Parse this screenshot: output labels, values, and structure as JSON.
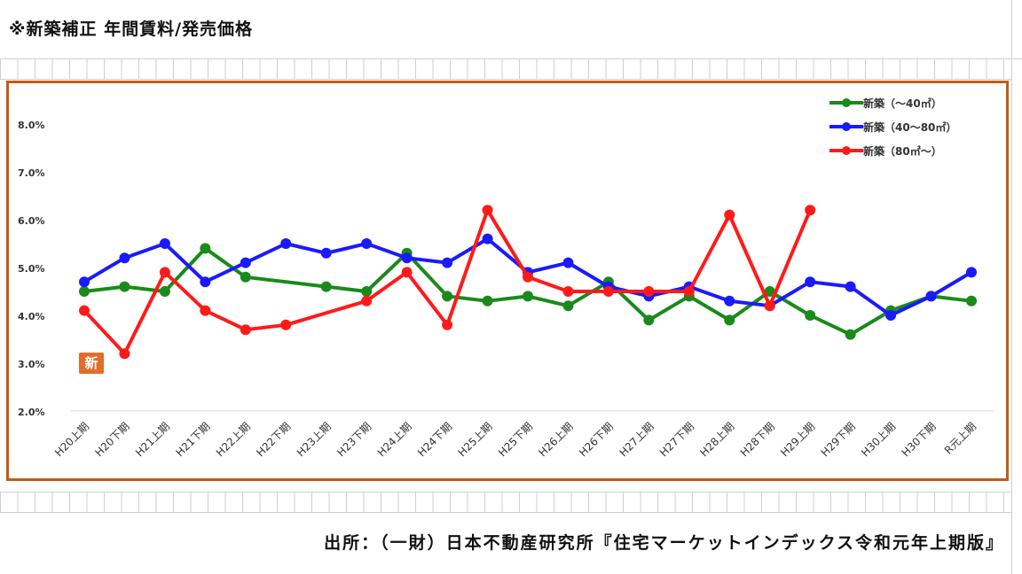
{
  "header": {
    "title": "※新築補正 年間賃料/発売価格"
  },
  "footer": {
    "source": "出所：（一財）日本不動産研究所『住宅マーケットインデックス令和元年上期版』"
  },
  "badge": {
    "label": "新"
  },
  "colors": {
    "frame": "#c55a11",
    "series_small": "#1a8a1a",
    "series_mid": "#1a1aff",
    "series_large": "#ff1a1a"
  },
  "chart_data": {
    "type": "line",
    "title": "",
    "xlabel": "",
    "ylabel": "",
    "ylim": [
      2.0,
      8.5
    ],
    "yticks": [
      "2.0%",
      "3.0%",
      "4.0%",
      "5.0%",
      "6.0%",
      "7.0%",
      "8.0%"
    ],
    "ytick_values": [
      2.0,
      3.0,
      4.0,
      5.0,
      6.0,
      7.0,
      8.0
    ],
    "grid": false,
    "legend": "top-right",
    "categories": [
      "H20上期",
      "H20下期",
      "H21上期",
      "H21下期",
      "H22上期",
      "H22下期",
      "H23上期",
      "H23下期",
      "H24上期",
      "H24下期",
      "H25上期",
      "H25下期",
      "H26上期",
      "H26下期",
      "H27上期",
      "H27下期",
      "H28上期",
      "H28下期",
      "H29上期",
      "H29下期",
      "H30上期",
      "H30下期",
      "R元上期"
    ],
    "series": [
      {
        "name": "新築（～40㎡）",
        "color": "#1a8a1a",
        "values": [
          4.5,
          4.6,
          4.5,
          5.4,
          4.8,
          null,
          4.6,
          4.5,
          5.3,
          4.4,
          4.3,
          4.4,
          4.2,
          4.7,
          3.9,
          4.4,
          3.9,
          4.5,
          4.0,
          3.6,
          4.1,
          4.4,
          4.3
        ]
      },
      {
        "name": "新築（40～80㎡）",
        "color": "#1a1aff",
        "values": [
          4.7,
          5.2,
          5.5,
          4.7,
          5.1,
          5.5,
          5.3,
          5.5,
          5.2,
          5.1,
          5.6,
          4.9,
          5.1,
          4.6,
          4.4,
          4.6,
          4.3,
          4.2,
          4.7,
          4.6,
          4.0,
          4.4,
          4.9
        ]
      },
      {
        "name": "新築（80㎡～）",
        "color": "#ff1a1a",
        "values": [
          4.1,
          3.2,
          4.9,
          4.1,
          3.7,
          3.8,
          null,
          4.3,
          4.9,
          3.8,
          6.2,
          4.8,
          4.5,
          4.5,
          4.5,
          4.5,
          6.1,
          4.2,
          6.2,
          null,
          null,
          null,
          null
        ]
      }
    ]
  }
}
